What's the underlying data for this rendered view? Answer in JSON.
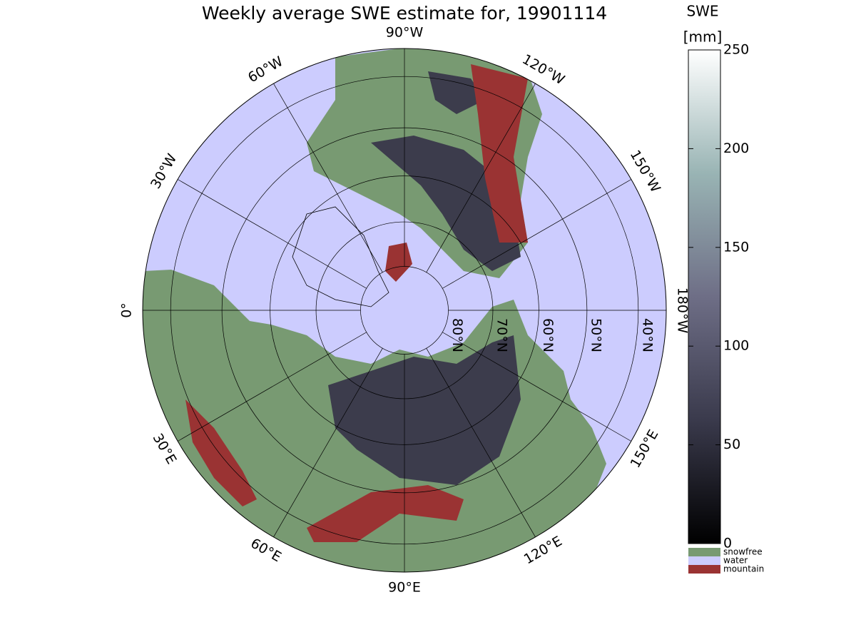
{
  "map": {
    "title": "Weekly average SWE estimate for, 19901114",
    "projection": "north-polar-stereographic",
    "meridians": [
      {
        "value": 0,
        "label": "0°"
      },
      {
        "value": 30,
        "label": "30°E"
      },
      {
        "value": 60,
        "label": "60°E"
      },
      {
        "value": 90,
        "label": "90°E"
      },
      {
        "value": 120,
        "label": "120°E"
      },
      {
        "value": 150,
        "label": "150°E"
      },
      {
        "value": 180,
        "label": "180°W"
      },
      {
        "value": -150,
        "label": "150°W"
      },
      {
        "value": -120,
        "label": "120°W"
      },
      {
        "value": -90,
        "label": "90°W"
      },
      {
        "value": -60,
        "label": "60°W"
      },
      {
        "value": -30,
        "label": "30°W"
      }
    ],
    "parallels": [
      {
        "value": 80,
        "label": "80°N"
      },
      {
        "value": 70,
        "label": "70°N"
      },
      {
        "value": 60,
        "label": "60°N"
      },
      {
        "value": 50,
        "label": "50°N"
      },
      {
        "value": 40,
        "label": "40°N"
      }
    ],
    "colorbar": {
      "title": "SWE",
      "unit": "[mm]",
      "lim": [
        0,
        250
      ],
      "ticks": [
        0,
        50,
        100,
        150,
        200,
        250
      ]
    },
    "legend": [
      {
        "name": "snowfree",
        "color": "#789a72"
      },
      {
        "name": "water",
        "color": "#ccccfe"
      },
      {
        "name": "mountain",
        "color": "#9a3333"
      }
    ]
  }
}
